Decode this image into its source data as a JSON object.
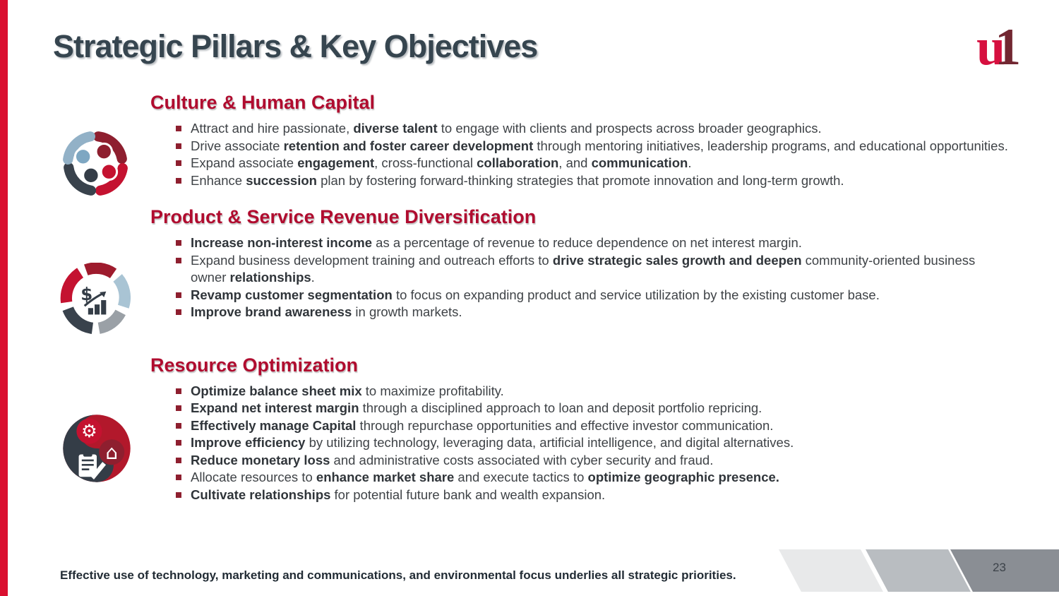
{
  "page": {
    "title": "Strategic Pillars & Key Objectives",
    "logo_u": "u",
    "logo_one": "1",
    "footer": "Effective use of technology, marketing and communications, and environmental focus underlies all strategic priorities.",
    "page_number": "23"
  },
  "colors": {
    "accent_red": "#da1030",
    "heading_red": "#b00c2f",
    "title_slate": "#36454f",
    "body_text": "#3f4347",
    "bullet_marker": "#8e1f2f",
    "logo_red": "#d6103f",
    "logo_maroon": "#722731",
    "band_light": "#e8e9ea",
    "band_medium": "#b9bdc1",
    "band_dark": "#8a8e94"
  },
  "icons": [
    {
      "name": "teamwork-circle-icon",
      "section": "Culture & Human Capital"
    },
    {
      "name": "revenue-growth-circle-icon",
      "section": "Product & Service Revenue Diversification"
    },
    {
      "name": "resource-optimization-circle-icon",
      "section": "Resource Optimization"
    }
  ],
  "sections": [
    {
      "title": "Culture & Human Capital",
      "icon": "teamwork-circle-icon",
      "bullets": [
        "Attract and hire passionate, **diverse talent** to engage with clients and prospects across broader geographics.",
        "Drive associate **retention and foster career development** through mentoring initiatives, leadership programs, and educational opportunities.",
        "Expand associate **engagement**, cross-functional **collaboration**, and **communication**.",
        "Enhance **succession** plan by fostering forward-thinking strategies that promote innovation and long-term growth."
      ]
    },
    {
      "title": "Product & Service Revenue Diversification",
      "icon": "revenue-growth-circle-icon",
      "bullets": [
        "**Increase non-interest income** as a percentage of revenue to reduce dependence on net interest margin.",
        "Expand business development training and outreach efforts to **drive strategic sales growth and deepen** community-oriented business owner **relationships**.",
        "**Revamp customer segmentation** to focus on expanding product and service utilization by the existing customer base.",
        "**Improve brand awareness** in growth markets."
      ]
    },
    {
      "title": "Resource Optimization",
      "icon": "resource-optimization-circle-icon",
      "bullets": [
        "**Optimize balance sheet mix** to maximize profitability.",
        "**Expand net interest margin** through a disciplined approach to loan and deposit portfolio repricing.",
        "**Effectively manage Capital** through repurchase opportunities and effective investor communication.",
        "**Improve efficiency** by utilizing technology, leveraging data, artificial intelligence, and digital alternatives.",
        "**Reduce monetary loss** and administrative costs associated with cyber security and fraud.",
        "Allocate resources to **enhance market share** and execute tactics to **optimize geographic presence.**",
        "**Cultivate relationships** for potential future bank and wealth expansion."
      ]
    }
  ]
}
